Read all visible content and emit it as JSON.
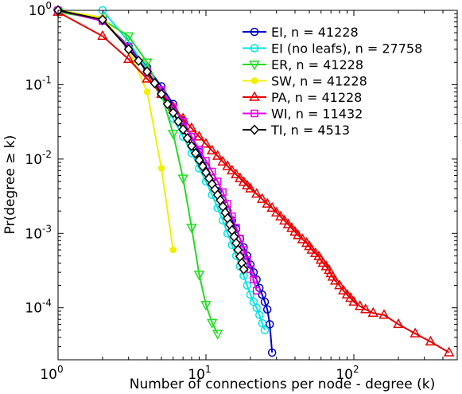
{
  "chart_data": {
    "type": "line",
    "xscale": "log",
    "yscale": "log",
    "xlim": [
      1,
      500
    ],
    "ylim": [
      2e-05,
      1
    ],
    "xlabel": "Number of connections per node - degree (k)",
    "ylabel": "Pr(degree ≥ k)",
    "xticks": [
      {
        "base": "10",
        "exp": "0",
        "value": 1
      },
      {
        "base": "10",
        "exp": "1",
        "value": 10
      },
      {
        "base": "10",
        "exp": "2",
        "value": 100
      }
    ],
    "yticks": [
      {
        "base": "10",
        "exp": "0",
        "value": 1
      },
      {
        "base": "10",
        "exp": "-1",
        "value": 0.1
      },
      {
        "base": "10",
        "exp": "-2",
        "value": 0.01
      },
      {
        "base": "10",
        "exp": "-3",
        "value": 0.001
      },
      {
        "base": "10",
        "exp": "-4",
        "value": 0.0001
      }
    ],
    "legend_position": "top-right",
    "series": [
      {
        "name": "EI",
        "n_label": "n = 41228",
        "color": "#0000cc",
        "marker": "circle",
        "x": [
          1,
          2,
          3,
          4,
          5,
          6,
          7,
          8,
          9,
          10,
          11,
          12,
          13,
          14,
          15,
          16,
          17,
          18,
          19,
          20,
          21,
          22,
          23,
          24,
          25,
          26,
          27,
          28
        ],
        "y": [
          1,
          0.72,
          0.33,
          0.17,
          0.095,
          0.055,
          0.033,
          0.02,
          0.0125,
          0.008,
          0.0055,
          0.0037,
          0.0028,
          0.002,
          0.0015,
          0.00115,
          0.00085,
          0.00065,
          0.0005,
          0.00038,
          0.0003,
          0.00024,
          0.000185,
          0.00015,
          0.00012,
          9.5e-05,
          6e-05,
          2.5e-05
        ]
      },
      {
        "name": "EI (no leafs)",
        "n_label": "n = 27758",
        "color": "#00e6e6",
        "marker": "circle",
        "x": [
          2,
          3,
          4,
          5,
          6,
          7,
          8,
          9,
          10,
          11,
          12,
          13,
          14,
          15,
          16,
          17,
          18,
          19,
          20,
          21,
          22,
          23,
          24,
          25
        ],
        "y": [
          1,
          0.38,
          0.16,
          0.075,
          0.035,
          0.02,
          0.012,
          0.0075,
          0.005,
          0.0033,
          0.0022,
          0.0015,
          0.001,
          0.0007,
          0.0005,
          0.00036,
          0.00027,
          0.0002,
          0.00015,
          0.00012,
          0.0001,
          8e-05,
          6.2e-05,
          5e-05
        ]
      },
      {
        "name": "ER",
        "n_label": "n = 41228",
        "color": "#22dd22",
        "marker": "triangle-down",
        "x": [
          1,
          2,
          3,
          4,
          5,
          6,
          7,
          8,
          9,
          10,
          11,
          12
        ],
        "y": [
          0.95,
          0.75,
          0.45,
          0.2,
          0.075,
          0.022,
          0.0055,
          0.0012,
          0.00028,
          0.00011,
          6.3e-05,
          4.5e-05
        ]
      },
      {
        "name": "SW",
        "n_label": "n = 41228",
        "color": "#f0f000",
        "marker": "dot",
        "x": [
          1,
          2,
          3,
          4,
          5,
          6
        ],
        "y": [
          1,
          0.8,
          0.3,
          0.08,
          0.0075,
          0.0006
        ]
      },
      {
        "name": "PA",
        "n_label": "n = 41228",
        "color": "#e60000",
        "marker": "triangle-up",
        "x": [
          1,
          2,
          3,
          4,
          5,
          6,
          7,
          8,
          9,
          10,
          11,
          12,
          13,
          14,
          15,
          16,
          17,
          18,
          19,
          20,
          22,
          24,
          26,
          28,
          30,
          32,
          34,
          36,
          38,
          40,
          42,
          45,
          48,
          50,
          52,
          55,
          58,
          60,
          62,
          65,
          68,
          70,
          72,
          75,
          80,
          85,
          90,
          95,
          100,
          110,
          120,
          135,
          160,
          200,
          260,
          330,
          440
        ],
        "y": [
          0.95,
          0.45,
          0.22,
          0.12,
          0.075,
          0.05,
          0.035,
          0.026,
          0.02,
          0.016,
          0.013,
          0.011,
          0.0092,
          0.008,
          0.007,
          0.0062,
          0.0055,
          0.0049,
          0.0044,
          0.004,
          0.0034,
          0.0029,
          0.0025,
          0.0022,
          0.0019,
          0.00168,
          0.00148,
          0.00132,
          0.00118,
          0.00105,
          0.00094,
          0.00083,
          0.00074,
          0.00067,
          0.0006,
          0.00054,
          0.00049,
          0.00044,
          0.0004,
          0.00036,
          0.00032,
          0.00029,
          0.00026,
          0.00023,
          0.0002,
          0.00017,
          0.00015,
          0.000135,
          0.00012,
          0.000105,
          9.5e-05,
          8.5e-05,
          8e-05,
          6e-05,
          4.5e-05,
          3.5e-05,
          2.5e-05
        ]
      },
      {
        "name": "WI",
        "n_label": "n = 11432",
        "color": "#e600e6",
        "marker": "square",
        "x": [
          1,
          2,
          3,
          4,
          5,
          6,
          7,
          8,
          9,
          10,
          11,
          12,
          13,
          14,
          15,
          16,
          17,
          18,
          19,
          20,
          21,
          22
        ],
        "y": [
          1,
          0.72,
          0.32,
          0.15,
          0.085,
          0.05,
          0.032,
          0.02,
          0.0135,
          0.0095,
          0.0068,
          0.005,
          0.0036,
          0.0025,
          0.0017,
          0.0012,
          0.00085,
          0.0006,
          0.00044,
          0.00033,
          0.00024,
          0.00017
        ]
      },
      {
        "name": "TI",
        "n_label": "n = 4513",
        "color": "#000000",
        "marker": "diamond",
        "x": [
          1,
          2,
          3,
          3.5,
          4,
          4.5,
          5,
          5.5,
          6,
          6.5,
          7,
          7.5,
          8,
          8.5,
          9,
          9.5,
          10,
          10.5,
          11,
          11.5,
          12,
          12.5,
          13,
          13.5,
          14,
          14.5,
          15,
          15.5,
          16,
          16.5,
          17,
          17.5,
          18
        ],
        "y": [
          1,
          0.75,
          0.3,
          0.21,
          0.15,
          0.105,
          0.075,
          0.055,
          0.042,
          0.032,
          0.025,
          0.019,
          0.015,
          0.012,
          0.0097,
          0.008,
          0.0066,
          0.0055,
          0.0046,
          0.0039,
          0.0033,
          0.0028,
          0.0023,
          0.0019,
          0.0016,
          0.00132,
          0.0011,
          0.0009,
          0.00074,
          0.0006,
          0.00049,
          0.0004,
          0.00033
        ]
      }
    ]
  }
}
